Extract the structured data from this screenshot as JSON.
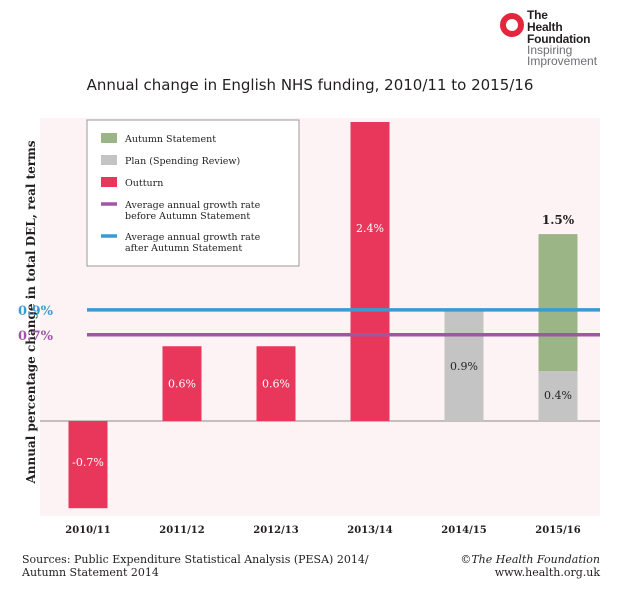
{
  "brand": {
    "name_lines": [
      "The",
      "Health",
      "Foundation"
    ],
    "tagline_lines": [
      "Inspiring",
      "Improvement"
    ],
    "ring_color": "#e3263d"
  },
  "chart_data": {
    "type": "bar",
    "title": "Annual change in English NHS funding, 2010/11 to 2015/16",
    "ylabel": "Annual percentage change in total DEL, real terms",
    "xlabel": "",
    "ylim": [
      -1.0,
      2.5
    ],
    "categories": [
      "2010/11",
      "2011/12",
      "2012/13",
      "2013/14",
      "2014/15",
      "2015/16"
    ],
    "series": [
      {
        "name": "Outturn",
        "color": "#e9365b",
        "values": [
          -0.7,
          0.6,
          0.6,
          2.4,
          null,
          null
        ],
        "labels": [
          "-0.7%",
          "0.6%",
          "0.6%",
          "2.4%",
          "",
          ""
        ]
      },
      {
        "name": "Plan (Spending Review)",
        "color": "#c4c4c4",
        "values": [
          null,
          null,
          null,
          null,
          0.9,
          0.4
        ],
        "labels": [
          "",
          "",
          "",
          "",
          "0.9%",
          "0.4%"
        ]
      },
      {
        "name": "Autumn Statement",
        "color": "#9bb587",
        "values": [
          null,
          null,
          null,
          null,
          null,
          1.1
        ],
        "labels": [
          "",
          "",
          "",
          "",
          "",
          ""
        ]
      }
    ],
    "total_labels": [
      "",
      "",
      "",
      "",
      "",
      "1.5%"
    ],
    "reference_lines": [
      {
        "name": "Average annual growth rate after Autumn Statement",
        "value": 0.9,
        "label": "0.9%",
        "color": "#3a9bd3"
      },
      {
        "name": "Average annual growth rate before Autumn Statement",
        "value": 0.7,
        "label": "0.7%",
        "color": "#a155a6"
      }
    ],
    "legend": {
      "position": "top-left",
      "items": [
        {
          "type": "box",
          "color": "#9bb587",
          "lines": [
            "Autumn Statement"
          ]
        },
        {
          "type": "box",
          "color": "#c4c4c4",
          "lines": [
            "Plan (Spending Review)"
          ]
        },
        {
          "type": "box",
          "color": "#e9365b",
          "lines": [
            "Outturn"
          ]
        },
        {
          "type": "line",
          "color": "#a155a6",
          "lines": [
            "Average annual growth rate",
            "before Autumn Statement"
          ]
        },
        {
          "type": "line",
          "color": "#3a9bd3",
          "lines": [
            "Average annual growth rate",
            "after Autumn Statement"
          ]
        }
      ]
    },
    "plot_background": "#fdf3f4"
  },
  "footer": {
    "sources_lines": [
      "Sources: Public Expenditure Statistical Analysis (PESA) 2014/",
      "Autumn Statement 2014"
    ],
    "copyright": "©The Health Foundation",
    "website": "www.health.org.uk"
  }
}
